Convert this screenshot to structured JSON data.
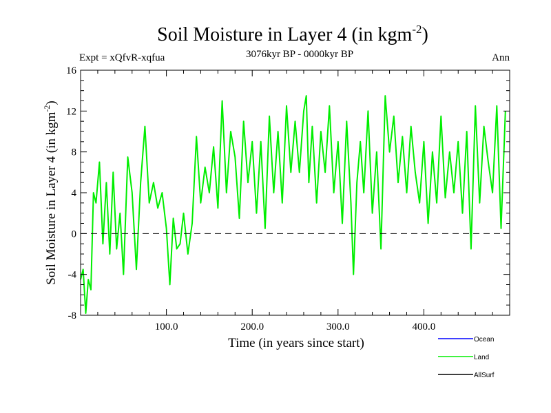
{
  "chart_data": {
    "type": "line",
    "title": "Soil Moisture in Layer 4 (in kgm",
    "title_sup": "-2",
    "title_end": ")",
    "subtitle": "3076kyr BP - 0000kyr BP",
    "expt_label": "Expt = xQfvR-xqfua",
    "season_label": "Ann",
    "xlabel": "Time (in years since start)",
    "ylabel": "Soil Moisture in Layer 4 (in kgm",
    "ylabel_sup": "-2",
    "ylabel_end": ")",
    "xlim": [
      0,
      500
    ],
    "ylim": [
      -8,
      16
    ],
    "xticks": [
      100,
      200,
      300,
      400
    ],
    "xtick_labels": [
      "100.0",
      "200.0",
      "300.0",
      "400.0"
    ],
    "yticks": [
      -8,
      -4,
      0,
      4,
      8,
      12,
      16
    ],
    "ytick_labels": [
      "-8",
      "-4",
      "0",
      "4",
      "8",
      "12",
      "16"
    ],
    "zero_line": 0,
    "colors": {
      "Ocean": "#0000ff",
      "Land": "#00ee00",
      "AllSurf": "#000000",
      "zero": "#000000"
    },
    "legend": [
      {
        "name": "Ocean",
        "color": "#0000ff"
      },
      {
        "name": "Land",
        "color": "#00ee00"
      },
      {
        "name": "AllSurf",
        "color": "#000000"
      }
    ],
    "series": [
      {
        "name": "Land",
        "x": [
          0,
          3,
          6,
          9,
          12,
          15,
          18,
          22,
          26,
          30,
          34,
          38,
          42,
          46,
          50,
          55,
          60,
          65,
          70,
          75,
          80,
          85,
          90,
          95,
          100,
          104,
          108,
          112,
          116,
          120,
          125,
          130,
          135,
          140,
          145,
          150,
          155,
          160,
          165,
          170,
          175,
          180,
          185,
          190,
          195,
          200,
          205,
          210,
          215,
          220,
          225,
          230,
          235,
          240,
          245,
          250,
          255,
          260,
          263,
          266,
          270,
          275,
          280,
          285,
          290,
          295,
          300,
          305,
          310,
          315,
          318,
          322,
          326,
          330,
          335,
          340,
          345,
          350,
          355,
          360,
          365,
          370,
          375,
          380,
          385,
          390,
          395,
          400,
          405,
          410,
          415,
          420,
          425,
          430,
          435,
          440,
          445,
          450,
          455,
          460,
          465,
          470,
          475,
          480,
          485,
          490,
          495
        ],
        "values": [
          -4.5,
          -3.5,
          -7.8,
          -4.5,
          -5.5,
          4.0,
          3.0,
          7.0,
          -1.0,
          5.0,
          -2.0,
          6.0,
          -1.5,
          2.0,
          -4.0,
          7.5,
          4.0,
          -3.5,
          5.0,
          10.5,
          3.0,
          5.0,
          2.5,
          4.0,
          0.5,
          -5.0,
          1.5,
          -1.5,
          -1.0,
          2.0,
          -2.0,
          1.0,
          9.5,
          3.0,
          6.5,
          4.0,
          8.5,
          2.5,
          13.0,
          4.0,
          10.0,
          7.5,
          1.5,
          11.0,
          5.0,
          9.0,
          2.0,
          9.0,
          0.5,
          11.5,
          4.0,
          10.0,
          3.0,
          12.5,
          6.0,
          11.0,
          6.0,
          12.0,
          13.5,
          5.0,
          10.5,
          3.0,
          10.0,
          6.0,
          12.5,
          4.0,
          9.0,
          1.0,
          11.0,
          3.0,
          -4.0,
          5.0,
          9.0,
          4.0,
          12.0,
          2.0,
          8.0,
          -1.5,
          13.5,
          8.0,
          11.5,
          5.0,
          9.5,
          4.0,
          10.5,
          6.0,
          3.0,
          9.0,
          1.0,
          8.0,
          3.0,
          11.5,
          3.5,
          8.0,
          4.0,
          9.0,
          2.0,
          10.0,
          -1.5,
          12.5,
          3.0,
          10.5,
          7.0,
          4.0,
          12.5,
          0.5,
          12.0
        ]
      }
    ],
    "legend_entries": [
      "Ocean",
      "Land",
      "AllSurf"
    ]
  }
}
